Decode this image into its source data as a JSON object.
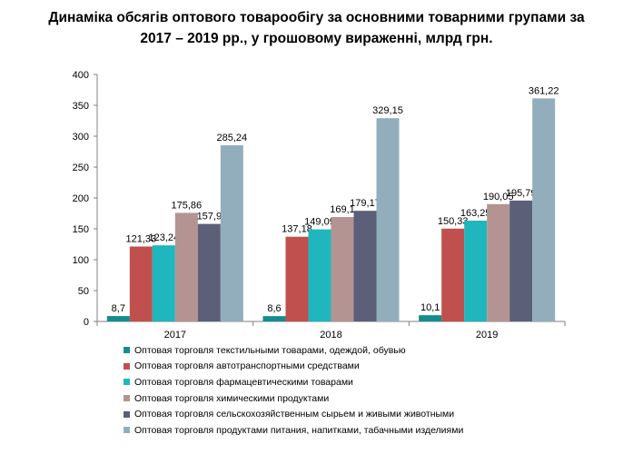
{
  "chart_data": {
    "type": "bar",
    "title": [
      "Динаміка обсягів оптового товарообігу за основними товарними групами за",
      "2017 – 2019 рр., у грошовому вираженні, млрд грн."
    ],
    "xlabel": "",
    "ylabel": "",
    "categories": [
      "2017",
      "2018",
      "2019"
    ],
    "ylim": [
      0,
      400
    ],
    "yticks": [
      "0",
      "50",
      "100",
      "150",
      "200",
      "250",
      "300",
      "350",
      "400"
    ],
    "grid": false,
    "legend_position": "bottom",
    "series": [
      {
        "name": "Оптовая торговля текстильными товарами, одеждой, обувью",
        "color": "#138d8f",
        "values": [
          8.7,
          8.6,
          10.1
        ],
        "labels": [
          "8,7",
          "8,6",
          "10,1"
        ]
      },
      {
        "name": "Оптовая торговля автотранспортными средствами",
        "color": "#c0504d",
        "values": [
          121.33,
          137.18,
          150.33
        ],
        "labels": [
          "121,33",
          "137,18",
          "150,33"
        ]
      },
      {
        "name": "Оптовая торговля фармацевтическими товарами",
        "color": "#1fb7bd",
        "values": [
          123.24,
          149.09,
          163.25
        ],
        "labels": [
          "123,24",
          "149,09",
          "163,25"
        ]
      },
      {
        "name": "Оптовая торговля химическими продуктами",
        "color": "#b39493",
        "values": [
          175.86,
          169.1,
          190.05
        ],
        "labels": [
          "175,86",
          "169,1",
          "190,05"
        ]
      },
      {
        "name": "Оптовая торговля сельскохозяйственным сырьем и живыми животными",
        "color": "#5b5f78",
        "values": [
          157.9,
          179.17,
          195.79
        ],
        "labels": [
          "157,9",
          "179,17",
          "195,79"
        ]
      },
      {
        "name": "Оптовая торговля продуктами питания, напитками, табачными изделиями",
        "color": "#92aebd",
        "values": [
          285.24,
          329.15,
          361.22
        ],
        "labels": [
          "285,24",
          "329,15",
          "361,22"
        ]
      }
    ]
  }
}
